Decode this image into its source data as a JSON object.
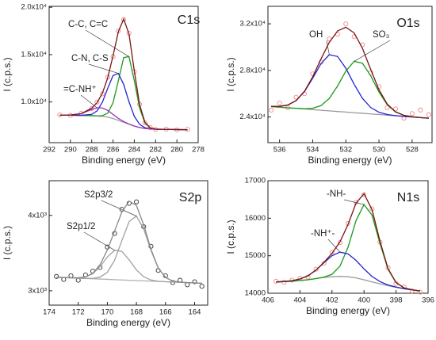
{
  "chart_data": [
    {
      "type": "line",
      "title": "C1s",
      "x_label": "Binding energy (eV)",
      "y_label": "I (c.p.s.)",
      "x": [
        291,
        290,
        289,
        288,
        287.5,
        287,
        286.5,
        286,
        285.5,
        285,
        284.5,
        284,
        283.5,
        283,
        282.5,
        282,
        281,
        280,
        279
      ],
      "xlim": [
        292,
        278
      ],
      "xticks": [
        292,
        290,
        288,
        286,
        284,
        282,
        280,
        278
      ],
      "ylim": [
        5700,
        20100
      ],
      "yticks": [
        {
          "value": 10000,
          "label": "1.0x10⁴"
        },
        {
          "value": 15000,
          "label": "1.5x10⁴"
        },
        {
          "value": 20000,
          "label": "2.0x10⁴"
        }
      ],
      "series": [
        {
          "color": "#f08a8a",
          "marker": "circle",
          "values": [
            8650,
            8580,
            8800,
            9300,
            9980,
            10850,
            12620,
            14800,
            17500,
            18700,
            17250,
            13200,
            9750,
            7800,
            7300,
            7100,
            7130,
            7050,
            7100
          ]
        },
        {
          "color": "#9a9a9a",
          "values": [
            8600,
            8600,
            8580,
            8550,
            8520,
            8480,
            8400,
            8250,
            8050,
            7850,
            7650,
            7450,
            7300,
            7200,
            7150,
            7120,
            7100,
            7080,
            7070
          ]
        },
        {
          "name": "C-C, C=C",
          "color": "#1a9a1a",
          "values": [
            8600,
            8600,
            8580,
            8550,
            8527,
            8547,
            8815,
            9900,
            12240,
            14680,
            14790,
            12240,
            9360,
            7770,
            7250,
            7131,
            7100,
            7080,
            7070
          ]
        },
        {
          "name": "C-N, C-S",
          "color": "#2424d0",
          "values": [
            8600,
            8600,
            8584,
            8692,
            9058,
            9970,
            11430,
            12780,
            13020,
            11850,
            10020,
            8480,
            7630,
            7277,
            7163,
            7120,
            7100,
            7080,
            7070
          ]
        },
        {
          "name": "=C-NH⁺",
          "color": "#a030c0",
          "values": [
            8601,
            8618,
            8758,
            9203,
            9380,
            9362,
            9105,
            8688,
            8262,
            7930,
            7673,
            7455,
            7300,
            7200,
            7150,
            7120,
            7100,
            7080,
            7070
          ]
        },
        {
          "color": "#7a1414",
          "values": [
            8601,
            8618,
            8762,
            9345,
            9925,
            10919,
            12550,
            14868,
            17422,
            18760,
            17183,
            13275,
            9690,
            7847,
            7263,
            7131,
            7100,
            7080,
            7070
          ]
        }
      ]
    },
    {
      "type": "line",
      "title": "O1s",
      "x_label": "Binding energy (eV)",
      "y_label": "I (c.p.s.)",
      "x": [
        536.5,
        536,
        535.5,
        535,
        534.5,
        534,
        533.5,
        533,
        532.5,
        532,
        531.5,
        531,
        530.5,
        530,
        529.5,
        529,
        528.5,
        528,
        527.5,
        527
      ],
      "xlim": [
        536.7,
        526.8
      ],
      "xticks": [
        536,
        534,
        532,
        530,
        528
      ],
      "ylim": [
        21800,
        33500
      ],
      "yticks": [
        {
          "value": 24000,
          "label": "2.4x10⁴"
        },
        {
          "value": 28000,
          "label": "2.8x10⁴"
        },
        {
          "value": 32000,
          "label": "3.2x10⁴"
        }
      ],
      "series": [
        {
          "color": "#f08a8a",
          "marker": "circle",
          "values": [
            24600,
            25200,
            24800,
            25700,
            26000,
            27700,
            28700,
            30700,
            31100,
            32000,
            30900,
            30200,
            27800,
            26600,
            24800,
            24700,
            23900,
            24300,
            24600,
            24200
          ]
        },
        {
          "color": "#9a9a9a",
          "values": [
            24900,
            24845,
            24790,
            24740,
            24690,
            24635,
            24580,
            24530,
            24475,
            24425,
            24370,
            24320,
            24265,
            24215,
            24160,
            24110,
            24055,
            24005,
            23950,
            23900
          ]
        },
        {
          "name": "OH",
          "color": "#2424d0",
          "values": [
            24917,
            24916,
            25031,
            25403,
            26175,
            27335,
            28580,
            29350,
            29195,
            28185,
            26810,
            25605,
            24816,
            24406,
            24215,
            24122,
            24057,
            24005,
            23950,
            23900
          ]
        },
        {
          "name": "SO₃",
          "color": "#1a9a1a",
          "values": [
            24900,
            24845,
            24791,
            24745,
            24717,
            24753,
            24980,
            25590,
            26665,
            27945,
            28780,
            28620,
            27535,
            26145,
            25050,
            24430,
            24144,
            24024,
            23953,
            23900
          ]
        },
        {
          "color": "#7a1414",
          "values": [
            24917,
            24916,
            25032,
            25408,
            26202,
            27453,
            28980,
            30410,
            31385,
            31705,
            31220,
            29905,
            28086,
            26336,
            25105,
            24442,
            24146,
            24024,
            23953,
            23900
          ]
        }
      ]
    },
    {
      "type": "line",
      "title": "S2p",
      "x_label": "Binding energy (eV)",
      "y_label": "I (c.p.s.)",
      "x": [
        173.5,
        173,
        172.5,
        172,
        171.5,
        171,
        170.5,
        170,
        169.5,
        169,
        168.5,
        168,
        167.5,
        167,
        166.5,
        166,
        165.5,
        165,
        164.5,
        164,
        163.5
      ],
      "xlim": [
        174,
        163.1
      ],
      "xticks": [
        174,
        172,
        170,
        168,
        166,
        164
      ],
      "ylim": [
        2810,
        4460
      ],
      "yticks": [
        {
          "value": 3000,
          "label": "3x10³"
        },
        {
          "value": 4000,
          "label": "4x10³"
        }
      ],
      "series": [
        {
          "color": "#333333",
          "marker": "circle",
          "values": [
            3190,
            3150,
            3200,
            3140,
            3210,
            3260,
            3310,
            3580,
            3760,
            4080,
            4160,
            4180,
            3850,
            3590,
            3270,
            3200,
            3110,
            3140,
            3080,
            3120,
            3060
          ]
        },
        {
          "color": "#b0b0b0",
          "values": [
            3180,
            3176,
            3172,
            3168,
            3164,
            3160,
            3156,
            3152,
            3148,
            3144,
            3140,
            3136,
            3132,
            3128,
            3124,
            3120,
            3116,
            3112,
            3108,
            3104,
            3100
          ]
        },
        {
          "name": "S2p3/2",
          "color": "#a0a0a0",
          "values": [
            3180,
            3176,
            3172,
            3168,
            3165,
            3165,
            3181,
            3245,
            3404,
            3666,
            3919,
            3991,
            3820,
            3536,
            3301,
            3177,
            3129,
            3114,
            3108,
            3104,
            3100
          ]
        },
        {
          "name": "S2p1/2",
          "color": "#a0a0a0",
          "values": [
            3180,
            3176,
            3173,
            3172,
            3184,
            3227,
            3320,
            3448,
            3538,
            3522,
            3410,
            3277,
            3186,
            3143,
            3127,
            3120,
            3116,
            3112,
            3108,
            3104,
            3100
          ]
        },
        {
          "color": "#8a8a8a",
          "values": [
            3180,
            3176,
            3173,
            3172,
            3185,
            3232,
            3345,
            3541,
            3794,
            4044,
            4189,
            4132,
            3874,
            3551,
            3304,
            3177,
            3129,
            3114,
            3108,
            3104,
            3100
          ]
        }
      ]
    },
    {
      "type": "line",
      "title": "N1s",
      "x_label": "Binding energy (eV)",
      "y_label": "I (c.p.s.)",
      "x": [
        405.5,
        405,
        404.5,
        404,
        403.5,
        403,
        402.5,
        402,
        401.5,
        401,
        400.5,
        400,
        399.5,
        399,
        398.5,
        398,
        397.5,
        397,
        396.5
      ],
      "xlim": [
        406,
        396
      ],
      "xticks": [
        406,
        404,
        402,
        400,
        398,
        396
      ],
      "ylim": [
        14000,
        17000
      ],
      "yticks": [
        14000,
        15000,
        16000,
        17000
      ],
      "series": [
        {
          "color": "#f08a8a",
          "marker": "circle",
          "values": [
            14320,
            14290,
            14350,
            14400,
            14430,
            14640,
            14800,
            15090,
            15350,
            15860,
            16420,
            16630,
            16250,
            15360,
            14680,
            14260,
            14170,
            14060,
            14030
          ]
        },
        {
          "color": "#9a9a9a",
          "values": [
            14300,
            14310,
            14320,
            14340,
            14360,
            14390,
            14420,
            14440,
            14450,
            14440,
            14410,
            14360,
            14300,
            14250,
            14200,
            14160,
            14120,
            14090,
            14060
          ]
        },
        {
          "name": "-NH-",
          "color": "#1a9a1a",
          "values": [
            14300,
            14310,
            14320,
            14340,
            14360,
            14391,
            14430,
            14504,
            14723,
            15225,
            15935,
            16364,
            16082,
            15323,
            14637,
            14281,
            14142,
            14093,
            14060
          ]
        },
        {
          "name": "-NH⁺-",
          "color": "#2424d0",
          "values": [
            14301,
            14313,
            14332,
            14380,
            14465,
            14616,
            14814,
            15000,
            15097,
            15048,
            14876,
            14649,
            14446,
            14310,
            14220,
            14165,
            14121,
            14090,
            14060
          ]
        },
        {
          "color": "#7a1414",
          "values": [
            14301,
            14313,
            14332,
            14380,
            14465,
            14617,
            14824,
            15064,
            15370,
            15833,
            16401,
            16653,
            16228,
            15383,
            14657,
            14286,
            14143,
            14093,
            14060
          ]
        }
      ]
    }
  ]
}
